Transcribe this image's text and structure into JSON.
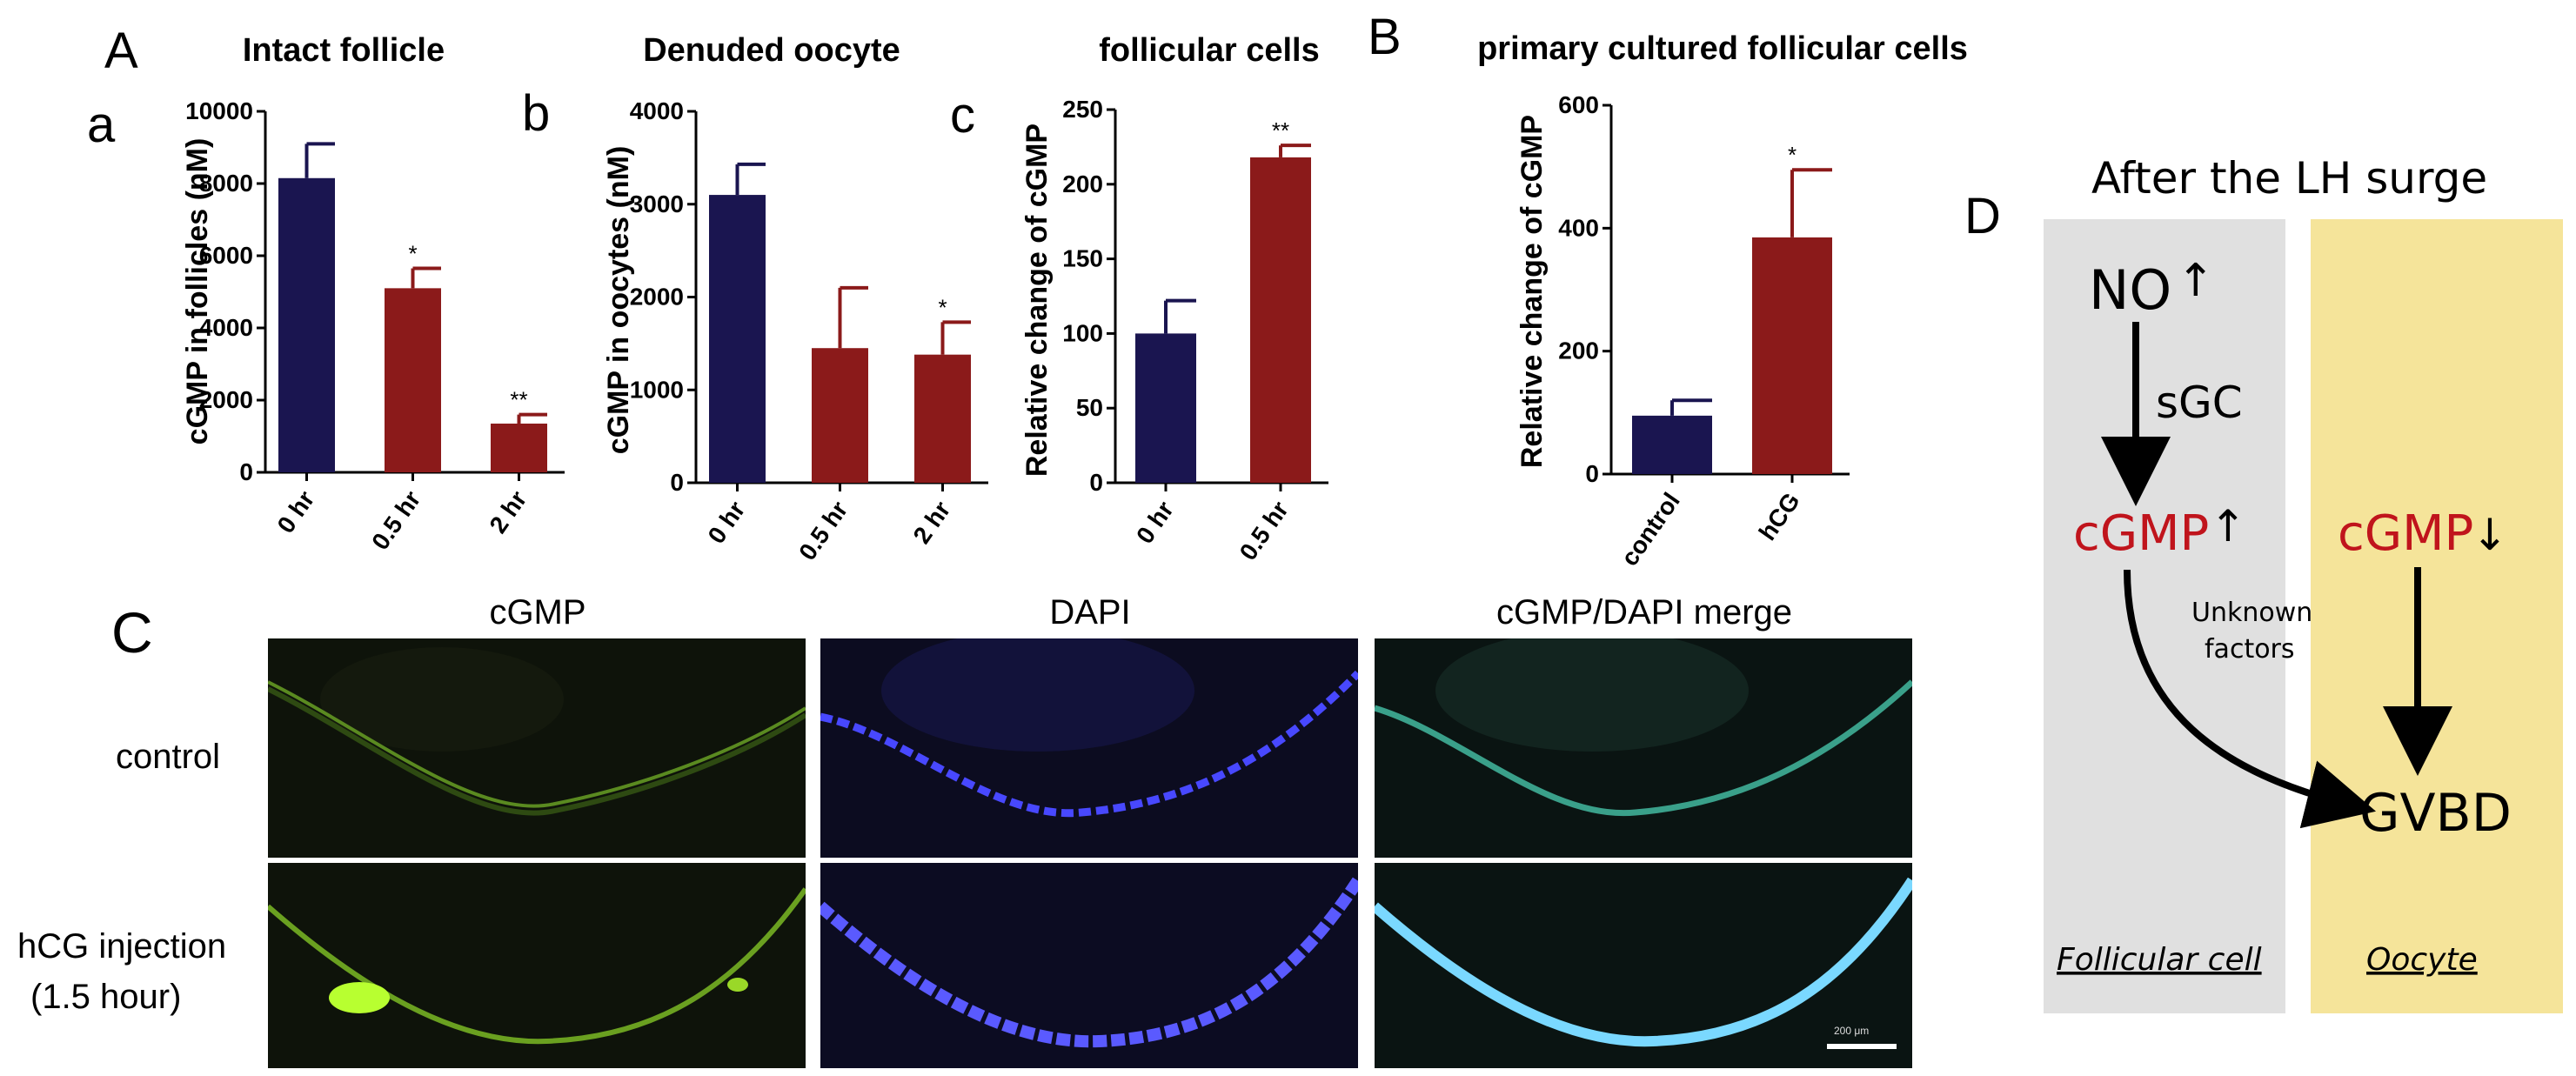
{
  "panels": {
    "A": "A",
    "B": "B",
    "C": "C",
    "D": "D"
  },
  "chart_data": [
    {
      "type": "bar",
      "panel": "a",
      "title": "Intact follicle",
      "ylabel": "cGMP in follicles (nM)",
      "categories": [
        "0 hr",
        "0.5 hr",
        "2 hr"
      ],
      "values": [
        8150,
        5100,
        1350
      ],
      "errors": [
        950,
        550,
        250
      ],
      "significance": [
        "",
        "*",
        "**"
      ],
      "colors": [
        "#1a1550",
        "#8b1a1a",
        "#8b1a1a"
      ],
      "ylim": [
        0,
        10000
      ],
      "yticks": [
        0,
        2000,
        4000,
        6000,
        8000,
        10000
      ]
    },
    {
      "type": "bar",
      "panel": "b",
      "title": "Denuded oocyte",
      "ylabel": "cGMP in oocytes (nM)",
      "categories": [
        "0 hr",
        "0.5 hr",
        "2 hr"
      ],
      "values": [
        3100,
        1450,
        1380
      ],
      "errors": [
        330,
        650,
        350
      ],
      "significance": [
        "",
        "",
        "*"
      ],
      "colors": [
        "#1a1550",
        "#8b1a1a",
        "#8b1a1a"
      ],
      "ylim": [
        0,
        4000
      ],
      "yticks": [
        0,
        1000,
        2000,
        3000,
        4000
      ]
    },
    {
      "type": "bar",
      "panel": "c",
      "title": "follicular cells",
      "ylabel": "Relative change of cGMP",
      "categories": [
        "0 hr",
        "0.5 hr"
      ],
      "values": [
        100,
        218
      ],
      "errors": [
        22,
        8
      ],
      "significance": [
        "",
        "**"
      ],
      "colors": [
        "#1a1550",
        "#8b1a1a"
      ],
      "ylim": [
        0,
        250
      ],
      "yticks": [
        0,
        50,
        100,
        150,
        200,
        250
      ]
    },
    {
      "type": "bar",
      "panel": "B",
      "title": "primary cultured follicular cells",
      "ylabel": "Relative change of cGMP",
      "categories": [
        "control",
        "hCG"
      ],
      "values": [
        95,
        385
      ],
      "errors": [
        25,
        110
      ],
      "significance": [
        "",
        "*"
      ],
      "colors": [
        "#1a1550",
        "#8b1a1a"
      ],
      "ylim": [
        0,
        600
      ],
      "yticks": [
        0,
        200,
        400,
        600
      ]
    }
  ],
  "microscopy": {
    "columns": [
      "cGMP",
      "DAPI",
      "cGMP/DAPI merge"
    ],
    "rows": [
      "control",
      "hCG injection",
      "(1.5 hour)"
    ],
    "scale_bar": "200 μm"
  },
  "diagram": {
    "title": "After the LH surge",
    "no_label": "NO",
    "up_arrow": "↑",
    "down_arrow": "↓",
    "sgc_label": "sGC",
    "cgmp_label": "cGMP",
    "unknown_line1": "Unknown",
    "unknown_line2": "factors",
    "gvbd_label": "GVBD",
    "follicular_label": "Follicular cell",
    "oocyte_label": "Oocyte",
    "follicular_bg": "#e0e0e0",
    "oocyte_bg": "#f5e49a",
    "red": "#c0141c"
  }
}
